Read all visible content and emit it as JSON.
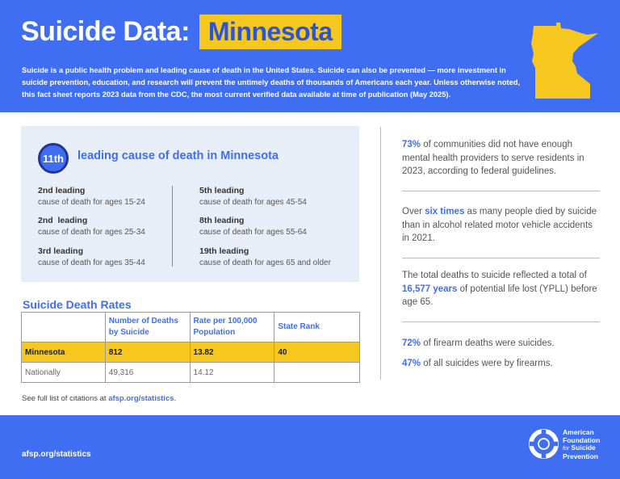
{
  "header": {
    "title": "Suicide Data:",
    "state": "Minnesota",
    "intro": "Suicide is a public health problem and leading cause of death in the United States. Suicide can also be prevented — more investment in suicide prevention, education, and research will prevent the untimely deaths of thousands of Americans each year. Unless otherwise noted, this fact sheet reports 2023 data from the CDC, the most current verified data available at time of publication (May 2025).",
    "map_icon": "minnesota-state-outline-icon"
  },
  "ranking": {
    "badge": "11th",
    "heading": "leading cause of death in Minnesota",
    "items": [
      {
        "title": "2nd leading",
        "subtitle": "cause of death for ages 15-24"
      },
      {
        "title": "2nd  leading",
        "subtitle": "cause of death for ages 25-34"
      },
      {
        "title": "3rd leading",
        "subtitle": "cause of death for ages 35-44"
      },
      {
        "title": "5th leading",
        "subtitle": "cause of death for ages 45-54"
      },
      {
        "title": "8th leading",
        "subtitle": "cause of death for ages 55-64"
      },
      {
        "title": "19th leading",
        "subtitle": "cause of death for ages 65 and older"
      }
    ]
  },
  "rates": {
    "title": "Suicide Death Rates",
    "columns": [
      "",
      "Number of Deaths by Suicide",
      "Rate per 100,000 Population",
      "State Rank"
    ],
    "rows": [
      [
        "Minnesota",
        "812",
        "13.82",
        "40"
      ],
      [
        "Nationally",
        "49,316",
        "14.12",
        ""
      ]
    ],
    "highlight_color": "#f6c71f"
  },
  "citation": {
    "text": "See full list of citations at",
    "link": "afsp.org/statistics",
    "end": "."
  },
  "stats": [
    {
      "highlight": "73%",
      "text": " of communities did not have enough mental health providers to serve residents in 2023, according to federal guidelines."
    },
    {
      "pre": "Over ",
      "highlight": "six times",
      "text": " as many people died by suicide than in alcohol related motor vehicle accidents in 2021."
    },
    {
      "pre": "The total deaths to suicide reflected a total of ",
      "highlight": "16,577 years",
      "text": " of potential life lost (YPLL) before age 65."
    },
    {
      "highlight": "72%",
      "text": " of firearm deaths were suicides."
    },
    {
      "highlight": "47%",
      "text": " of all suicides were by firearms."
    }
  ],
  "footer": {
    "url": "afsp.org/statistics",
    "logo_icon": "afsp-life-ring-logo-icon",
    "logo_line1": "American",
    "logo_line2": "Foundation",
    "logo_line3a": "for",
    "logo_line3b": " Suicide",
    "logo_line4": "Prevention"
  },
  "colors": {
    "brand_blue": "#3f6ef3",
    "brand_yellow": "#f6c71f",
    "panel_bg": "#e8eef8",
    "badge_ring": "#23339a"
  }
}
